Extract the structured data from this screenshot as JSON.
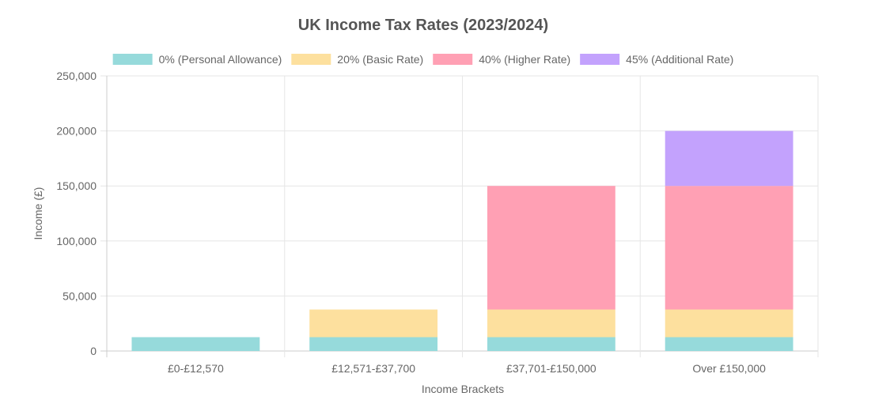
{
  "chart_data": {
    "type": "bar",
    "stacked": true,
    "title": "UK Income Tax Rates (2023/2024)",
    "xlabel": "Income Brackets",
    "ylabel": "Income (£)",
    "categories": [
      "£0-£12,570",
      "£12,571-£37,700",
      "£37,701-£150,000",
      "Over £150,000"
    ],
    "series": [
      {
        "name": "0% (Personal Allowance)",
        "color": "#96dadb",
        "values": [
          12570,
          12570,
          12570,
          12570
        ]
      },
      {
        "name": "20% (Basic Rate)",
        "color": "#fde09e",
        "values": [
          0,
          25130,
          25130,
          25130
        ]
      },
      {
        "name": "40% (Higher Rate)",
        "color": "#ffa0b4",
        "values": [
          0,
          0,
          112300,
          112300
        ]
      },
      {
        "name": "45% (Additional Rate)",
        "color": "#c3a2fd",
        "values": [
          0,
          0,
          0,
          50000
        ]
      }
    ],
    "ylim": [
      0,
      250000
    ],
    "yticks": [
      0,
      50000,
      100000,
      150000,
      200000,
      250000
    ],
    "ytick_labels": [
      "0",
      "50,000",
      "100,000",
      "150,000",
      "200,000",
      "250,000"
    ],
    "grid": true,
    "legend_position": "top"
  }
}
